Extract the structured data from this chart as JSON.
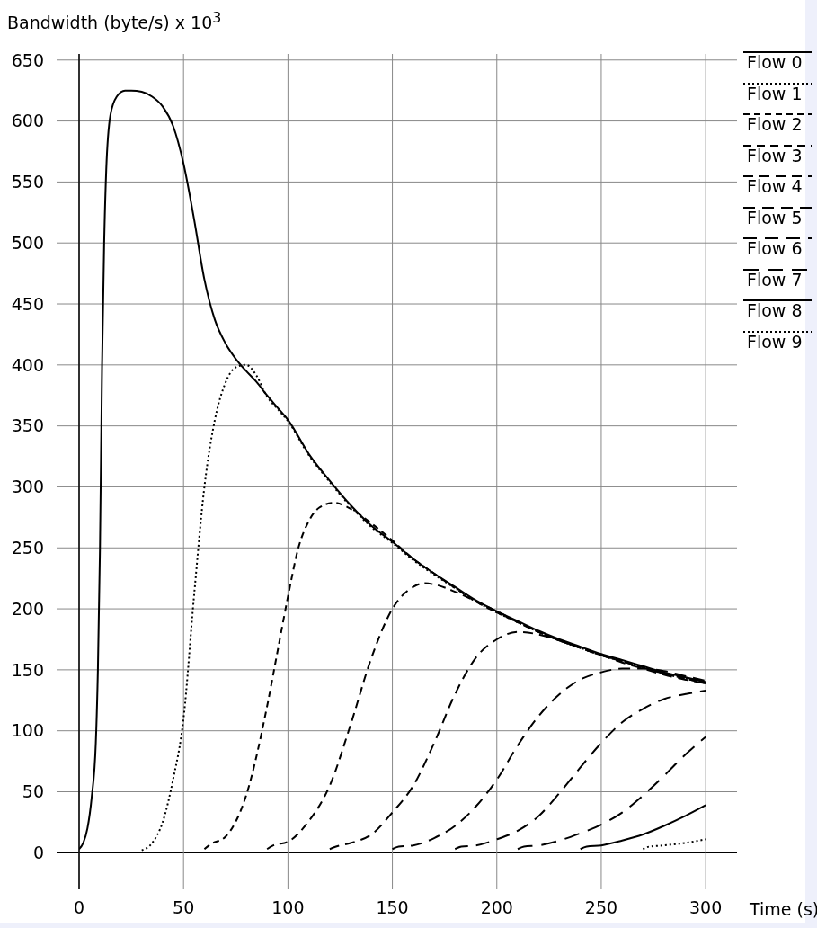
{
  "chart_data": {
    "type": "line",
    "xlabel": "Time (s)",
    "ylabel": "Bandwidth (byte/s) x 10$^{3}$",
    "xlim": [
      0,
      315
    ],
    "ylim": [
      -30,
      655
    ],
    "xticks": [
      0,
      50,
      100,
      150,
      200,
      250,
      300
    ],
    "yticks": [
      0,
      50,
      100,
      150,
      200,
      250,
      300,
      350,
      400,
      450,
      500,
      550,
      600,
      650
    ],
    "grid": true,
    "legend": "top right",
    "marker": "none",
    "series": [
      {
        "name": "Flow 0",
        "color": "#000000",
        "line_style": "solid",
        "x": [
          0,
          2,
          4,
          6,
          8,
          9,
          10,
          11,
          12,
          13,
          15,
          18,
          22,
          25,
          30,
          35,
          40,
          45,
          50,
          55,
          60,
          65,
          70,
          75,
          80,
          85,
          90,
          95,
          100,
          110,
          120,
          130,
          140,
          150,
          160,
          170,
          180,
          190,
          200,
          210,
          220,
          230,
          240,
          250,
          260,
          270,
          280,
          290,
          300
        ],
        "values": [
          3,
          8,
          20,
          45,
          90,
          150,
          250,
          400,
          500,
          560,
          605,
          620,
          625,
          625,
          624,
          620,
          612,
          596,
          565,
          520,
          470,
          437,
          418,
          405,
          395,
          386,
          375,
          365,
          355,
          327,
          305,
          285,
          268,
          255,
          241,
          229,
          218,
          207,
          198,
          190,
          182,
          175,
          169,
          163,
          158,
          153,
          148,
          144,
          140
        ]
      },
      {
        "name": "Flow 1",
        "color": "#000000",
        "line_style": "dotted",
        "x": [
          30,
          35,
          40,
          45,
          50,
          55,
          60,
          65,
          70,
          75,
          80,
          85,
          90,
          95,
          100,
          110,
          120,
          130,
          140,
          150,
          160,
          170,
          180,
          190,
          200,
          210,
          220,
          230,
          240,
          250,
          260,
          270,
          280,
          290,
          300
        ],
        "values": [
          2,
          8,
          25,
          60,
          110,
          210,
          300,
          355,
          385,
          398,
          400,
          391,
          374,
          364,
          354,
          326,
          304,
          284,
          267,
          254,
          240,
          228,
          217,
          206,
          197,
          189,
          181,
          174,
          168,
          162,
          157,
          152,
          147,
          143,
          139
        ]
      },
      {
        "name": "Flow 2",
        "color": "#000000",
        "line_style": "dashed",
        "x": [
          60,
          63,
          70,
          80,
          90,
          95,
          100,
          105,
          110,
          115,
          122,
          130,
          140,
          150,
          160,
          170,
          180,
          190,
          200,
          210,
          220,
          230,
          240,
          250,
          260,
          270,
          280,
          290,
          300
        ],
        "values": [
          3,
          7,
          13,
          47,
          120,
          165,
          210,
          250,
          272,
          283,
          287,
          282,
          270,
          256,
          241,
          229,
          217,
          206,
          197,
          189,
          181,
          174,
          168,
          162,
          157,
          152,
          147,
          143,
          139
        ]
      },
      {
        "name": "Flow 3",
        "color": "#000000",
        "line_style": "dashed",
        "x": [
          90,
          93,
          100,
          110,
          120,
          130,
          140,
          150,
          160,
          165,
          170,
          180,
          190,
          200,
          210,
          220,
          230,
          240,
          250,
          260,
          270,
          280,
          290,
          300
        ],
        "values": [
          3,
          6,
          9,
          26,
          55,
          105,
          160,
          200,
          218,
          221,
          220,
          214,
          206,
          198,
          189,
          181,
          174,
          168,
          162,
          157,
          152,
          147,
          143,
          139
        ]
      },
      {
        "name": "Flow 4",
        "color": "#000000",
        "line_style": "dashed",
        "x": [
          120,
          123,
          130,
          140,
          150,
          160,
          170,
          180,
          190,
          200,
          210,
          220,
          230,
          240,
          250,
          260,
          270,
          280,
          290,
          300
        ],
        "values": [
          3,
          5,
          8,
          15,
          33,
          55,
          90,
          130,
          160,
          175,
          181,
          179,
          174,
          168,
          162,
          156,
          151,
          146,
          142,
          139
        ]
      },
      {
        "name": "Flow 5",
        "color": "#000000",
        "line_style": "dashed",
        "x": [
          150,
          153,
          160,
          170,
          180,
          190,
          200,
          210,
          220,
          230,
          240,
          250,
          260,
          270,
          280,
          290,
          300
        ],
        "values": [
          3,
          5,
          6,
          12,
          22,
          38,
          60,
          88,
          112,
          130,
          142,
          148,
          151,
          151,
          149,
          145,
          141
        ]
      },
      {
        "name": "Flow 6",
        "color": "#000000",
        "line_style": "dashed",
        "x": [
          180,
          183,
          190,
          200,
          210,
          220,
          230,
          240,
          250,
          260,
          270,
          280,
          290,
          300
        ],
        "values": [
          3,
          5,
          6,
          11,
          18,
          30,
          49,
          70,
          90,
          107,
          118,
          126,
          130,
          133
        ]
      },
      {
        "name": "Flow 7",
        "color": "#000000",
        "line_style": "dashed",
        "x": [
          210,
          213,
          220,
          230,
          240,
          250,
          260,
          270,
          280,
          290,
          300
        ],
        "values": [
          3,
          5,
          6,
          10,
          16,
          23,
          33,
          47,
          63,
          80,
          95
        ]
      },
      {
        "name": "Flow 8",
        "color": "#000000",
        "line_style": "solid",
        "x": [
          240,
          243,
          250,
          260,
          270,
          280,
          290,
          300
        ],
        "values": [
          3,
          5,
          6,
          10,
          15,
          22,
          30,
          39
        ]
      },
      {
        "name": "Flow 9",
        "color": "#000000",
        "line_style": "dotted",
        "x": [
          270,
          273,
          280,
          290,
          300
        ],
        "values": [
          3,
          5,
          6,
          8,
          11
        ]
      }
    ]
  }
}
